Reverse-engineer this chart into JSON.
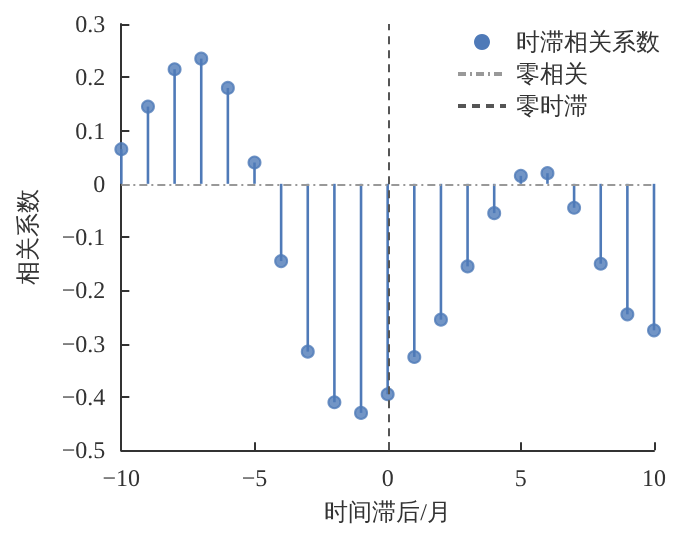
{
  "chart_data": {
    "type": "lollipop",
    "xlabel": "时间滞后/月",
    "ylabel": "相关系数",
    "series": [
      {
        "name": "时滞相关系数",
        "color": "#4f7ab8",
        "x": [
          -10,
          -9,
          -8,
          -7,
          -6,
          -5,
          -4,
          -3,
          -2,
          -1,
          0,
          1,
          2,
          3,
          4,
          5,
          6,
          7,
          8,
          9,
          10
        ],
        "values": [
          0.065,
          0.145,
          0.215,
          0.235,
          0.18,
          0.04,
          -0.145,
          -0.315,
          -0.41,
          -0.43,
          -0.395,
          -0.325,
          -0.255,
          -0.155,
          -0.055,
          0.015,
          0.02,
          -0.045,
          -0.15,
          -0.245,
          -0.275
        ]
      }
    ],
    "ref_lines": [
      {
        "axis": "y",
        "value": 0,
        "label": "零相关",
        "color": "#999999",
        "line_style": "dashdot"
      },
      {
        "axis": "x",
        "value": 0,
        "label": "零时滞",
        "color": "#555555",
        "line_style": "dashed"
      }
    ],
    "xlim": [
      -10,
      10
    ],
    "xticks": [
      {
        "value": -10,
        "label": "−10"
      },
      {
        "value": -5,
        "label": "−5"
      },
      0,
      5,
      10
    ],
    "ylim": [
      -0.5,
      0.3
    ],
    "yticks": [
      {
        "value": -0.5,
        "label": "−0.5"
      },
      {
        "value": -0.4,
        "label": "−0.4"
      },
      {
        "value": -0.3,
        "label": "−0.3"
      },
      {
        "value": -0.2,
        "label": "−0.2"
      },
      {
        "value": -0.1,
        "label": "−0.1"
      },
      0,
      0.1,
      0.2,
      0.3
    ],
    "marker": "circle",
    "grid": false,
    "legend": "top right"
  }
}
